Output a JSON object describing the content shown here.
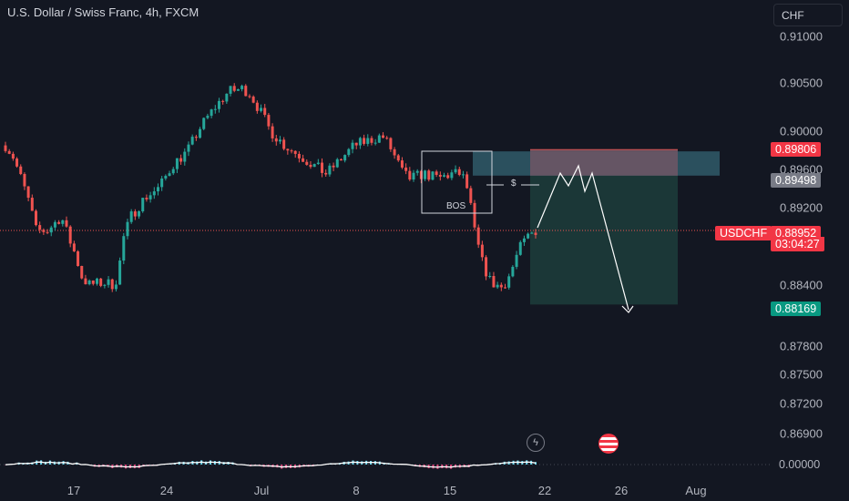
{
  "header": {
    "title": "U.S. Dollar / Swiss Franc, 4h, FXCM",
    "currency_button": "CHF"
  },
  "colors": {
    "bg": "#131722",
    "up": "#26a69a",
    "down": "#ef5350",
    "price_line": "#ef5350",
    "zone_supply": "#2f5665",
    "zone_pink": "#6b5565",
    "zone_target": "#1d3b3a",
    "osc_up": "#6cd8f0",
    "osc_down": "#e0457b"
  },
  "icons": {
    "event1": "lightning-icon",
    "event2": "us-flag-icon"
  },
  "chart_data": {
    "type": "candlestick",
    "title": "U.S. Dollar / Swiss Franc, 4h, FXCM",
    "y_ticks": [
      "0.91000",
      "0.90500",
      "0.90000",
      "0.89600",
      "0.89200",
      "0.88400",
      "0.87800",
      "0.87500",
      "0.87200",
      "0.86900"
    ],
    "x_ticks": [
      "17",
      "24",
      "Jul",
      "8",
      "15",
      "22",
      "26",
      "Aug"
    ],
    "ylim": [
      0.8655,
      0.9135
    ],
    "price_label": {
      "symbol": "USDCHF",
      "price": "0.88952",
      "countdown": "03:04:27"
    },
    "level_labels": {
      "zone_top": "0.89806",
      "zone_mid": "0.89498",
      "target": "0.88169"
    },
    "annotations": {
      "bos_label": "BOS",
      "dollar_mark": "$"
    },
    "oscillator": {
      "value": "0.00000"
    },
    "price_path": [
      [
        0,
        0.8985
      ],
      [
        0.5,
        0.8975
      ],
      [
        1,
        0.8955
      ],
      [
        1.7,
        0.8925
      ],
      [
        2.2,
        0.8895
      ],
      [
        3,
        0.8895
      ],
      [
        4,
        0.891
      ],
      [
        4.6,
        0.8885
      ],
      [
        5,
        0.887
      ],
      [
        5.5,
        0.8845
      ],
      [
        6,
        0.8838
      ],
      [
        7,
        0.884
      ],
      [
        7.8,
        0.8838
      ],
      [
        8.1,
        0.885
      ],
      [
        8.4,
        0.8885
      ],
      [
        9,
        0.891
      ],
      [
        10,
        0.893
      ],
      [
        11,
        0.894
      ],
      [
        12,
        0.8965
      ],
      [
        13,
        0.8978
      ],
      [
        14,
        0.9005
      ],
      [
        15,
        0.9025
      ],
      [
        16,
        0.9042
      ],
      [
        17,
        0.9045
      ],
      [
        17.5,
        0.904
      ],
      [
        18.3,
        0.902
      ],
      [
        19,
        0.9
      ],
      [
        20,
        0.8985
      ],
      [
        21,
        0.8975
      ],
      [
        22,
        0.8965
      ],
      [
        23,
        0.8955
      ],
      [
        24,
        0.897
      ],
      [
        25,
        0.8985
      ],
      [
        26,
        0.899
      ],
      [
        27,
        0.8995
      ],
      [
        27.5,
        0.8985
      ],
      [
        28,
        0.897
      ],
      [
        28.5,
        0.8955
      ],
      [
        29,
        0.895
      ],
      [
        30,
        0.8955
      ],
      [
        31,
        0.895
      ],
      [
        32,
        0.8955
      ],
      [
        32.7,
        0.8955
      ],
      [
        33.2,
        0.8935
      ],
      [
        33.6,
        0.8895
      ],
      [
        34.2,
        0.886
      ],
      [
        34.8,
        0.884
      ],
      [
        35.6,
        0.8835
      ],
      [
        36.2,
        0.885
      ],
      [
        36.8,
        0.8875
      ],
      [
        37.5,
        0.889
      ],
      [
        38,
        0.8895
      ]
    ],
    "time_range": [
      0,
      38
    ]
  }
}
